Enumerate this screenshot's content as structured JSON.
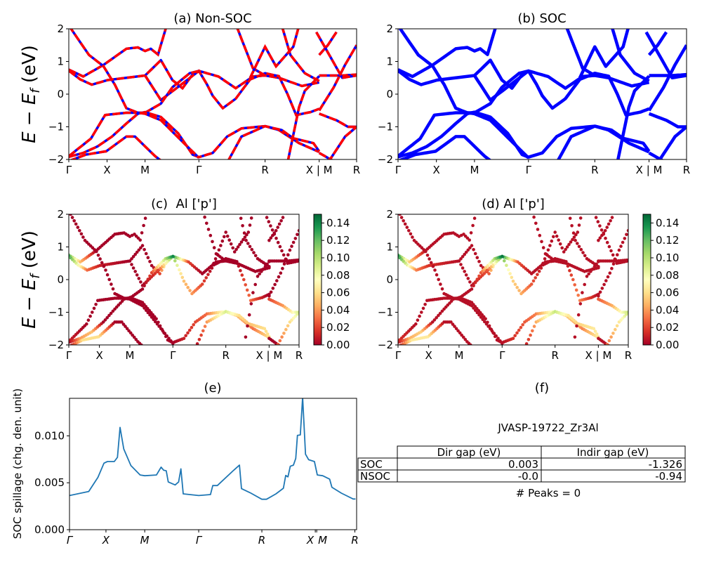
{
  "band_data": {
    "k_ticks": [
      {
        "label": "Γ",
        "k": 0
      },
      {
        "label": "X",
        "k": 0.133
      },
      {
        "label": "M",
        "k": 0.265
      },
      {
        "label": "Γ",
        "k": 0.452
      },
      {
        "label": "R",
        "k": 0.682
      },
      {
        "label": "X | M",
        "k": 0.87
      },
      {
        "label": "R",
        "k": 1
      }
    ],
    "bands": [
      [
        [
          0,
          0.75,
          0.12
        ],
        [
          0.05,
          0.54,
          0.05
        ],
        [
          0.12,
          0.89,
          0
        ],
        [
          0.2,
          1.39,
          0
        ],
        [
          0.24,
          1.43,
          0
        ],
        [
          0.265,
          1.32,
          0
        ],
        [
          0.285,
          1.39,
          0
        ],
        [
          0.31,
          1.21,
          0
        ],
        [
          0.34,
          2.1,
          0
        ]
      ],
      [
        [
          0,
          0.72,
          0.13
        ],
        [
          0.04,
          0.45,
          0.08
        ],
        [
          0.08,
          0.29,
          0.03
        ],
        [
          0.135,
          0.43,
          0.01
        ],
        [
          0.265,
          0.57,
          0
        ],
        [
          0.32,
          1.04,
          0
        ],
        [
          0.36,
          0.43,
          0
        ],
        [
          0.395,
          0.18,
          0.02
        ],
        [
          0.43,
          0.6,
          0.1
        ],
        [
          0.452,
          0.71,
          0.14
        ],
        [
          0.52,
          0.54,
          0.02
        ],
        [
          0.58,
          0.18,
          0
        ],
        [
          0.64,
          0.54,
          0
        ],
        [
          0.682,
          0.57,
          0
        ],
        [
          0.73,
          0.5,
          0
        ],
        [
          0.81,
          0.25,
          0
        ],
        [
          0.87,
          0.36,
          0
        ]
      ],
      [
        [
          0.265,
          0.57,
          0
        ],
        [
          0.32,
          -0.18,
          0
        ],
        [
          0.39,
          0.29,
          0.02
        ],
        [
          0.452,
          0.71,
          0.12
        ],
        [
          0.48,
          0.3,
          0.07
        ],
        [
          0.5,
          -0.05,
          0.05
        ],
        [
          0.535,
          -0.43,
          0.04
        ],
        [
          0.58,
          -0.14,
          0.02
        ],
        [
          0.63,
          0.45,
          0
        ],
        [
          0.682,
          0.64,
          0
        ],
        [
          0.73,
          0.55,
          0
        ],
        [
          0.76,
          0.0,
          0.02
        ],
        [
          0.79,
          -0.64,
          0.03
        ],
        [
          0.84,
          -0.55,
          0.01
        ],
        [
          0.87,
          -0.45,
          0
        ]
      ],
      [
        [
          0.87,
          0.57,
          0
        ],
        [
          0.95,
          0.57,
          0
        ],
        [
          1,
          0.6,
          0
        ]
      ],
      [
        [
          0.87,
          -0.6,
          0.02
        ],
        [
          0.93,
          -0.8,
          0.04
        ],
        [
          0.97,
          -1.0,
          0.07
        ],
        [
          1,
          -1.0,
          0.09
        ]
      ],
      [
        [
          0,
          -1.9,
          0.01
        ],
        [
          0.077,
          -1.36,
          0
        ],
        [
          0.126,
          -0.64,
          0
        ],
        [
          0.2,
          -0.57,
          0
        ],
        [
          0.265,
          -0.57,
          0
        ],
        [
          0.32,
          -0.29,
          0
        ],
        [
          0.36,
          0.21,
          0.02
        ],
        [
          0.42,
          0.64,
          0.1
        ],
        [
          0.452,
          0.71,
          0.14
        ]
      ],
      [
        [
          0,
          -1.92,
          0
        ],
        [
          0.05,
          -1.8,
          0.04
        ],
        [
          0.1,
          -1.6,
          0.05
        ],
        [
          0.15,
          -1.3,
          0
        ],
        [
          0.2,
          -0.9,
          0
        ],
        [
          0.24,
          -0.6,
          0
        ],
        [
          0.265,
          -0.55,
          0
        ],
        [
          0.32,
          -0.7,
          0
        ],
        [
          0.38,
          -1.2,
          0
        ],
        [
          0.43,
          -1.85,
          0
        ],
        [
          0.452,
          -1.93,
          0
        ],
        [
          0.5,
          -1.8,
          0.01
        ],
        [
          0.55,
          -1.3,
          0.02
        ],
        [
          0.6,
          -1.05,
          0.03
        ],
        [
          0.682,
          -0.98,
          0.08
        ],
        [
          0.73,
          -1.1,
          0.05
        ],
        [
          0.8,
          -1.5,
          0.03
        ],
        [
          0.87,
          -1.77,
          0.06
        ]
      ],
      [
        [
          0,
          2.1,
          0
        ],
        [
          0.07,
          1.2,
          0
        ],
        [
          0.12,
          0.86,
          0
        ],
        [
          0.16,
          0.29,
          0
        ],
        [
          0.2,
          -0.43,
          0
        ],
        [
          0.24,
          -0.57,
          0
        ],
        [
          0.265,
          -0.6,
          0
        ],
        [
          0.32,
          -0.8,
          0
        ],
        [
          0.4,
          -1.5,
          0
        ],
        [
          0.452,
          -1.95,
          0
        ]
      ],
      [
        [
          0,
          -2.05,
          0
        ],
        [
          0.06,
          -1.85,
          0.06
        ],
        [
          0.13,
          -1.75,
          0.06
        ],
        [
          0.2,
          -1.3,
          0
        ],
        [
          0.23,
          -1.3,
          0
        ],
        [
          0.3,
          -1.9,
          0
        ],
        [
          0.33,
          -2.1,
          0
        ]
      ],
      [
        [
          0.55,
          -2.1,
          0
        ],
        [
          0.6,
          -1.3,
          0.04
        ],
        [
          0.682,
          -0.98,
          0.09
        ],
        [
          0.74,
          -1.1,
          0.06
        ],
        [
          0.78,
          -1.35,
          0.05
        ],
        [
          0.85,
          -1.5,
          0.06
        ],
        [
          0.87,
          -1.75,
          0.06
        ]
      ],
      [
        [
          0.582,
          2.1,
          0
        ],
        [
          0.64,
          0.79,
          0
        ],
        [
          0.682,
          0.57,
          0
        ]
      ],
      [
        [
          0.63,
          0.5,
          0
        ],
        [
          0.682,
          1.45,
          0
        ],
        [
          0.72,
          0.85,
          0
        ],
        [
          0.78,
          1.45,
          0
        ],
        [
          0.8,
          2.1,
          0
        ]
      ],
      [
        [
          0.74,
          2.1,
          0
        ],
        [
          0.77,
          1.2,
          0
        ],
        [
          0.82,
          0.64,
          0
        ],
        [
          0.87,
          0.4,
          0
        ]
      ],
      [
        [
          0.87,
          1.2,
          0
        ],
        [
          0.9,
          1.5,
          0
        ],
        [
          0.93,
          1.9,
          0
        ]
      ],
      [
        [
          0.87,
          -0.5,
          0
        ],
        [
          0.92,
          0.2,
          0
        ],
        [
          0.96,
          0.9,
          0
        ],
        [
          1,
          1.5,
          0
        ]
      ],
      [
        [
          0.86,
          1.9,
          0
        ],
        [
          0.95,
          0.5,
          0
        ],
        [
          1,
          0.57,
          0
        ]
      ],
      [
        [
          0.87,
          -1.8,
          0
        ],
        [
          0.93,
          -2.1,
          0
        ]
      ],
      [
        [
          0.9,
          -2.1,
          0.02
        ],
        [
          0.96,
          -1.3,
          0.06
        ],
        [
          1,
          -1.0,
          0.09
        ]
      ],
      [
        [
          0.76,
          -2.1,
          0
        ],
        [
          0.8,
          -0.4,
          0
        ],
        [
          0.82,
          0.1,
          0
        ],
        [
          0.87,
          0.55,
          0
        ]
      ]
    ]
  },
  "chart_data": [
    {
      "type": "line",
      "title": "(a) Non-SOC",
      "ylabel": {
        "main": "E − E",
        "sub": "f",
        "unit": " (eV)"
      },
      "ylim": [
        -2,
        2
      ],
      "yticks": [
        "−2",
        "−1",
        "0",
        "1",
        "2"
      ],
      "colors": [
        "#0000ff",
        "#ff0000"
      ],
      "style": "red dashed over blue"
    },
    {
      "type": "line",
      "title": "(b) SOC",
      "ylim": [
        -2,
        2
      ],
      "yticks": [
        "−2",
        "−1",
        "0",
        "1",
        "2"
      ],
      "colors": [
        "#0000ff"
      ]
    },
    {
      "type": "scatter",
      "title": "(c)  Al ['p']",
      "ylabel": {
        "main": "E − E",
        "sub": "f",
        "unit": " (eV)"
      },
      "ylim": [
        -2,
        2
      ],
      "yticks": [
        "−2",
        "−1",
        "0",
        "1",
        "2"
      ],
      "colorbar": {
        "colormap": "RdYlGn",
        "range": [
          0,
          0.15
        ],
        "ticks": [
          "0.00",
          "0.02",
          "0.04",
          "0.06",
          "0.08",
          "0.10",
          "0.12",
          "0.14"
        ]
      }
    },
    {
      "type": "scatter",
      "title": "(d) Al ['p']",
      "ylim": [
        -2,
        2
      ],
      "yticks": [
        "−2",
        "−1",
        "0",
        "1",
        "2"
      ],
      "colorbar": {
        "colormap": "RdYlGn",
        "range": [
          0,
          0.15
        ],
        "ticks": [
          "0.00",
          "0.02",
          "0.04",
          "0.06",
          "0.08",
          "0.10",
          "0.12",
          "0.14"
        ]
      }
    },
    {
      "type": "line",
      "title": "(e)",
      "ylabel": "SOC spillage (chg. den. unit)",
      "ylim": [
        0,
        0.014
      ],
      "yticks": [
        "0.000",
        "0.005",
        "0.010"
      ],
      "color": "#1f77b4",
      "xticks": [
        {
          "label": "Γ",
          "k": 0
        },
        {
          "label": "X",
          "k": 0.127
        },
        {
          "label": "M",
          "k": 0.262
        },
        {
          "label": "Γ",
          "k": 0.45
        },
        {
          "label": "R",
          "k": 0.67
        },
        {
          "label": "X",
          "k": 0.856
        },
        {
          "label": "M",
          "k": 0.861
        },
        {
          "label": "R",
          "k": 0.994
        }
      ],
      "x": [
        0,
        0.067,
        0.099,
        0.12,
        0.132,
        0.156,
        0.167,
        0.176,
        0.189,
        0.214,
        0.246,
        0.262,
        0.303,
        0.319,
        0.328,
        0.337,
        0.344,
        0.368,
        0.38,
        0.388,
        0.396,
        0.45,
        0.491,
        0.499,
        0.515,
        0.572,
        0.592,
        0.599,
        0.629,
        0.67,
        0.686,
        0.719,
        0.745,
        0.753,
        0.761,
        0.769,
        0.78,
        0.788,
        0.794,
        0.804,
        0.812,
        0.822,
        0.833,
        0.853,
        0.863,
        0.882,
        0.906,
        0.914,
        0.947,
        0.988,
        0.996
      ],
      "y": [
        0.00364,
        0.00407,
        0.00558,
        0.00709,
        0.00726,
        0.00726,
        0.00771,
        0.0109,
        0.0086,
        0.00683,
        0.00583,
        0.00575,
        0.00583,
        0.00666,
        0.00633,
        0.00628,
        0.00508,
        0.00477,
        0.00508,
        0.00648,
        0.00382,
        0.00364,
        0.00374,
        0.0047,
        0.0047,
        0.00633,
        0.00688,
        0.00437,
        0.00394,
        0.00324,
        0.00324,
        0.00382,
        0.00442,
        0.00578,
        0.00563,
        0.00676,
        0.00688,
        0.00759,
        0.01005,
        0.0101,
        0.01412,
        0.00804,
        0.00746,
        0.00726,
        0.00583,
        0.00575,
        0.00538,
        0.00452,
        0.00389,
        0.00327,
        0.00327
      ]
    },
    {
      "type": "table",
      "title": "(f)",
      "subtitle": "JVASP-19722_Zr3Al",
      "columns": [
        "Dir gap (eV)",
        "Indir gap (eV)"
      ],
      "rows": [
        {
          "label": "SOC",
          "values": [
            "0.003",
            "-1.326"
          ]
        },
        {
          "label": "NSOC",
          "values": [
            "-0.0",
            "-0.94"
          ]
        }
      ],
      "footer": "# Peaks = 0"
    }
  ]
}
